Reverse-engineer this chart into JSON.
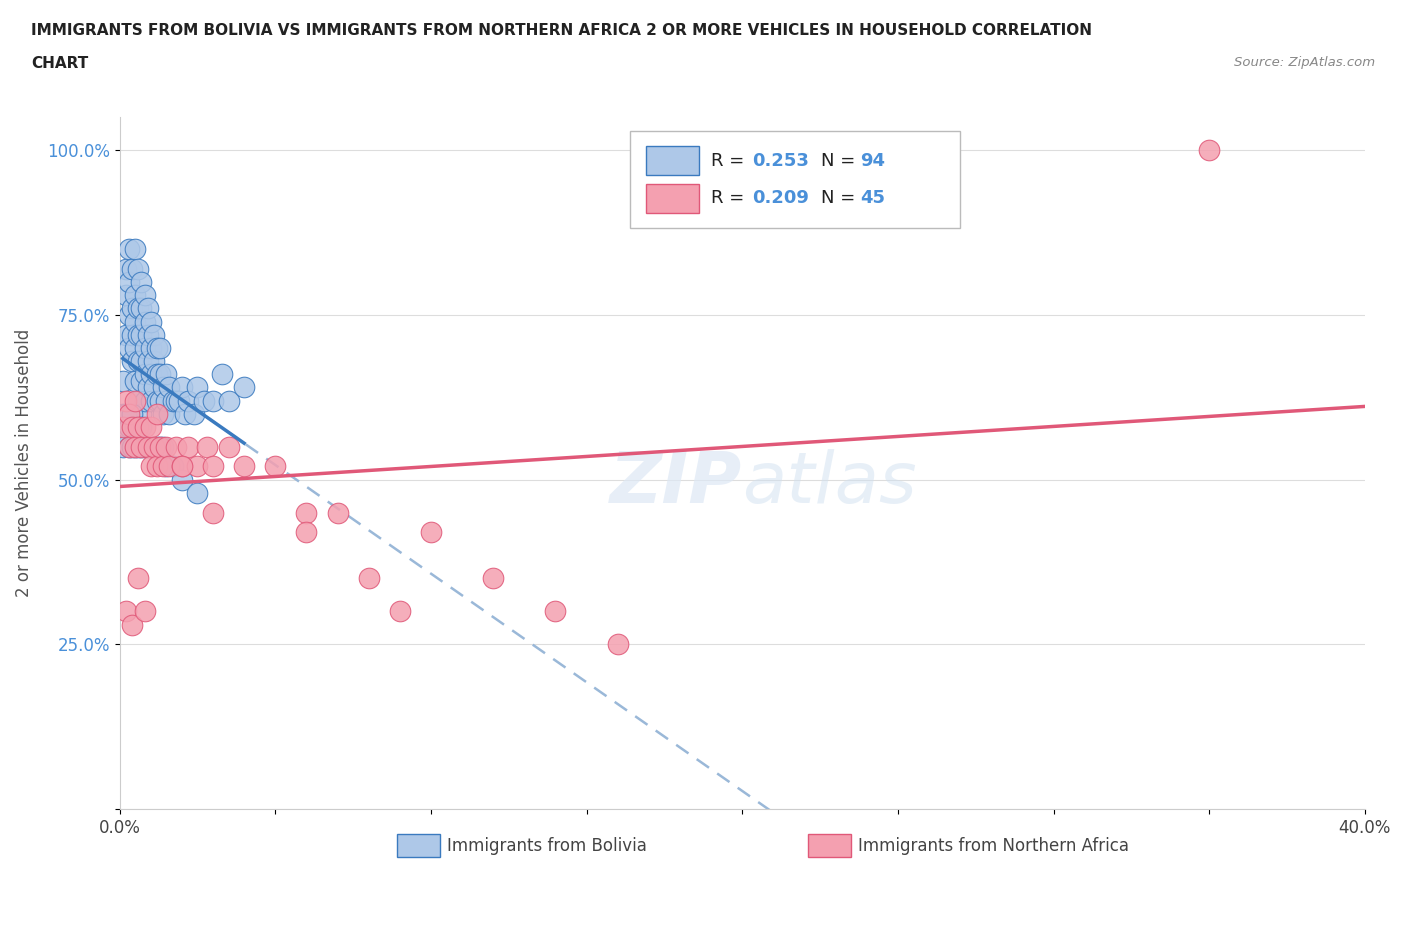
{
  "title_line1": "IMMIGRANTS FROM BOLIVIA VS IMMIGRANTS FROM NORTHERN AFRICA 2 OR MORE VEHICLES IN HOUSEHOLD CORRELATION",
  "title_line2": "CHART",
  "source": "Source: ZipAtlas.com",
  "xlabel_bolivia": "Immigrants from Bolivia",
  "xlabel_northern_africa": "Immigrants from Northern Africa",
  "ylabel": "2 or more Vehicles in Household",
  "xlim": [
    0.0,
    0.4
  ],
  "ylim": [
    0.0,
    1.05
  ],
  "xticks": [
    0.0,
    0.05,
    0.1,
    0.15,
    0.2,
    0.25,
    0.3,
    0.35,
    0.4
  ],
  "xticklabels": [
    "0.0%",
    "",
    "",
    "",
    "",
    "",
    "",
    "",
    "40.0%"
  ],
  "yticks": [
    0.0,
    0.25,
    0.5,
    0.75,
    1.0
  ],
  "yticklabels": [
    "",
    "25.0%",
    "50.0%",
    "75.0%",
    "100.0%"
  ],
  "R_bolivia": 0.253,
  "N_bolivia": 94,
  "R_northern_africa": 0.209,
  "N_northern_africa": 45,
  "color_bolivia": "#aec8e8",
  "color_northern_africa": "#f4a0b0",
  "color_bolivia_line": "#3a7abf",
  "color_bolivia_dash": "#9ab8d8",
  "color_northern_africa_line": "#e05878",
  "tick_color": "#4a90d9",
  "bolivia_x": [
    0.001,
    0.001,
    0.002,
    0.002,
    0.002,
    0.003,
    0.003,
    0.003,
    0.003,
    0.004,
    0.004,
    0.004,
    0.004,
    0.005,
    0.005,
    0.005,
    0.005,
    0.005,
    0.006,
    0.006,
    0.006,
    0.006,
    0.006,
    0.007,
    0.007,
    0.007,
    0.007,
    0.007,
    0.007,
    0.008,
    0.008,
    0.008,
    0.008,
    0.008,
    0.009,
    0.009,
    0.009,
    0.009,
    0.01,
    0.01,
    0.01,
    0.01,
    0.011,
    0.011,
    0.011,
    0.012,
    0.012,
    0.012,
    0.013,
    0.013,
    0.013,
    0.014,
    0.014,
    0.015,
    0.015,
    0.016,
    0.016,
    0.017,
    0.018,
    0.019,
    0.02,
    0.021,
    0.022,
    0.024,
    0.025,
    0.027,
    0.03,
    0.033,
    0.035,
    0.04,
    0.001,
    0.002,
    0.002,
    0.003,
    0.003,
    0.004,
    0.004,
    0.005,
    0.005,
    0.006,
    0.006,
    0.007,
    0.007,
    0.008,
    0.009,
    0.01,
    0.011,
    0.012,
    0.013,
    0.014,
    0.015,
    0.017,
    0.02,
    0.025
  ],
  "bolivia_y": [
    0.6,
    0.65,
    0.72,
    0.78,
    0.82,
    0.7,
    0.75,
    0.8,
    0.85,
    0.68,
    0.72,
    0.76,
    0.82,
    0.65,
    0.7,
    0.74,
    0.78,
    0.85,
    0.62,
    0.68,
    0.72,
    0.76,
    0.82,
    0.6,
    0.65,
    0.68,
    0.72,
    0.76,
    0.8,
    0.62,
    0.66,
    0.7,
    0.74,
    0.78,
    0.64,
    0.68,
    0.72,
    0.76,
    0.62,
    0.66,
    0.7,
    0.74,
    0.64,
    0.68,
    0.72,
    0.62,
    0.66,
    0.7,
    0.62,
    0.66,
    0.7,
    0.6,
    0.64,
    0.62,
    0.66,
    0.6,
    0.64,
    0.62,
    0.62,
    0.62,
    0.64,
    0.6,
    0.62,
    0.6,
    0.64,
    0.62,
    0.62,
    0.66,
    0.62,
    0.64,
    0.55,
    0.58,
    0.6,
    0.55,
    0.58,
    0.55,
    0.6,
    0.55,
    0.58,
    0.55,
    0.58,
    0.55,
    0.58,
    0.55,
    0.55,
    0.55,
    0.55,
    0.55,
    0.55,
    0.55,
    0.52,
    0.52,
    0.5,
    0.48
  ],
  "northern_africa_x": [
    0.001,
    0.002,
    0.003,
    0.003,
    0.004,
    0.005,
    0.005,
    0.006,
    0.007,
    0.008,
    0.009,
    0.01,
    0.01,
    0.011,
    0.012,
    0.013,
    0.014,
    0.015,
    0.016,
    0.018,
    0.02,
    0.022,
    0.025,
    0.028,
    0.03,
    0.035,
    0.04,
    0.05,
    0.06,
    0.07,
    0.08,
    0.09,
    0.1,
    0.12,
    0.14,
    0.16,
    0.002,
    0.004,
    0.006,
    0.008,
    0.012,
    0.02,
    0.03,
    0.06,
    0.35
  ],
  "northern_africa_y": [
    0.58,
    0.62,
    0.55,
    0.6,
    0.58,
    0.55,
    0.62,
    0.58,
    0.55,
    0.58,
    0.55,
    0.52,
    0.58,
    0.55,
    0.52,
    0.55,
    0.52,
    0.55,
    0.52,
    0.55,
    0.52,
    0.55,
    0.52,
    0.55,
    0.52,
    0.55,
    0.52,
    0.52,
    0.45,
    0.45,
    0.35,
    0.3,
    0.42,
    0.35,
    0.3,
    0.25,
    0.3,
    0.28,
    0.35,
    0.3,
    0.6,
    0.52,
    0.45,
    0.42,
    1.0
  ]
}
